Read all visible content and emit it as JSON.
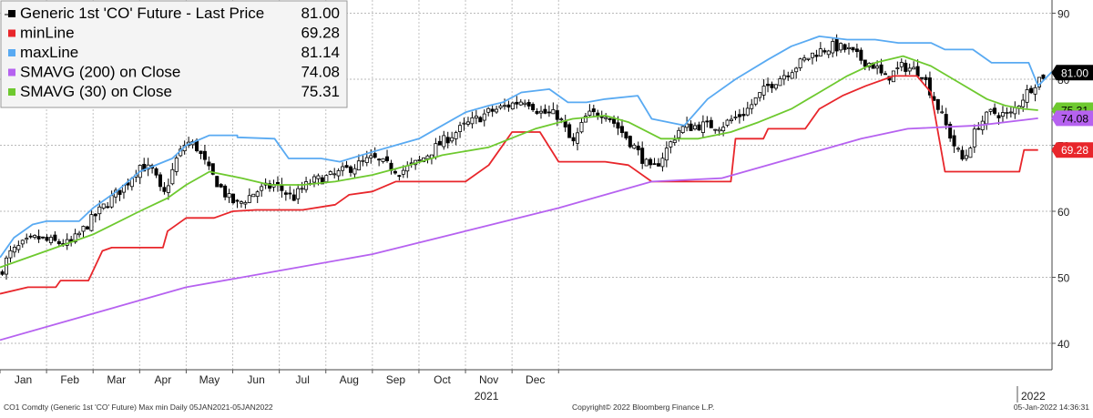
{
  "chart_data": {
    "type": "line",
    "subtype": "candlestick-with-overlays",
    "legend_placement": "top-left",
    "grid": true,
    "ylim": [
      36,
      92
    ],
    "y_ticks": [
      40,
      50,
      60,
      70,
      80,
      90
    ],
    "x_month_labels": [
      "Jan",
      "Feb",
      "Mar",
      "Apr",
      "May",
      "Jun",
      "Jul",
      "Aug",
      "Sep",
      "Oct",
      "Nov",
      "Dec"
    ],
    "year_labels": [
      "2021",
      "2022"
    ],
    "legend": [
      {
        "name": "Generic 1st 'CO' Future - Last Price",
        "value": "81.00",
        "color": "#000000"
      },
      {
        "name": "minLine",
        "value": "69.28",
        "color": "#e8262b"
      },
      {
        "name": "maxLine",
        "value": "81.14",
        "color": "#59aaf2"
      },
      {
        "name": "SMAVG (200)  on Close",
        "value": "74.08",
        "color": "#b662f0"
      },
      {
        "name": "SMAVG (30)  on Close",
        "value": "75.31",
        "color": "#6ec92f"
      }
    ],
    "right_labels": [
      {
        "value": "81.00",
        "y": 81.0,
        "bg": "#000000",
        "fg": "#ffffff"
      },
      {
        "value": "75.31",
        "y": 75.31,
        "bg": "#6ec92f",
        "fg": "#000000"
      },
      {
        "value": "74.08",
        "y": 74.08,
        "bg": "#b662f0",
        "fg": "#000000"
      },
      {
        "value": "69.28",
        "y": 69.28,
        "bg": "#e8262b",
        "fg": "#ffffff"
      }
    ],
    "series": [
      {
        "name": "maxLine",
        "color": "#59aaf2",
        "points": [
          [
            0,
            53
          ],
          [
            0.3,
            56
          ],
          [
            0.7,
            58
          ],
          [
            1,
            58.5
          ],
          [
            1.7,
            58.5
          ],
          [
            2,
            60.5
          ],
          [
            2.5,
            63
          ],
          [
            3,
            66
          ],
          [
            3.7,
            68
          ],
          [
            4,
            70
          ],
          [
            4.5,
            71.5
          ],
          [
            5.1,
            71.5
          ],
          [
            5.1,
            71.2
          ],
          [
            5.9,
            71
          ],
          [
            6.2,
            68
          ],
          [
            6.9,
            68
          ],
          [
            7.3,
            67.5
          ],
          [
            8,
            69
          ],
          [
            8.5,
            70
          ],
          [
            9,
            71
          ],
          [
            9.5,
            73
          ],
          [
            10,
            75
          ],
          [
            10.5,
            76
          ],
          [
            10.8,
            76.5
          ],
          [
            11.2,
            78
          ],
          [
            11.8,
            78.5
          ],
          [
            12.2,
            76.5
          ],
          [
            12.6,
            76.5
          ],
          [
            13,
            77
          ],
          [
            13.7,
            77.5
          ],
          [
            14,
            74
          ],
          [
            14.7,
            73
          ],
          [
            15.2,
            77
          ],
          [
            15.8,
            80
          ],
          [
            16.5,
            83
          ],
          [
            17,
            85
          ],
          [
            17.6,
            86.5
          ],
          [
            18.2,
            86
          ],
          [
            18.8,
            86
          ],
          [
            19.3,
            85.5
          ],
          [
            20,
            85.5
          ],
          [
            20.3,
            84.5
          ],
          [
            20.9,
            84.5
          ],
          [
            21.3,
            82.5
          ],
          [
            22.1,
            82.5
          ],
          [
            22.3,
            79
          ],
          [
            22.6,
            81.14
          ]
        ]
      },
      {
        "name": "minLine",
        "color": "#e8262b",
        "points": [
          [
            0,
            47.5
          ],
          [
            0.6,
            48.5
          ],
          [
            1.2,
            48.5
          ],
          [
            1.3,
            49.5
          ],
          [
            1.9,
            49.5
          ],
          [
            2.2,
            54
          ],
          [
            2.4,
            54.5
          ],
          [
            3.5,
            54.5
          ],
          [
            3.6,
            57
          ],
          [
            4,
            59
          ],
          [
            4.6,
            59
          ],
          [
            5,
            60
          ],
          [
            5.5,
            60.2
          ],
          [
            6.5,
            60.2
          ],
          [
            7.2,
            61
          ],
          [
            7.5,
            62.5
          ],
          [
            8,
            63
          ],
          [
            8.5,
            64.5
          ],
          [
            9.2,
            64.5
          ],
          [
            10,
            64.5
          ],
          [
            10.5,
            67
          ],
          [
            11,
            72
          ],
          [
            11.6,
            72
          ],
          [
            12,
            67.5
          ],
          [
            12.7,
            67.5
          ],
          [
            13,
            67.5
          ],
          [
            13.5,
            67
          ],
          [
            14,
            64.5
          ],
          [
            15.7,
            64.5
          ],
          [
            15.8,
            71
          ],
          [
            16.4,
            71
          ],
          [
            16.5,
            72.5
          ],
          [
            17.3,
            72.5
          ],
          [
            17.6,
            75.5
          ],
          [
            18.1,
            77.5
          ],
          [
            18.6,
            79
          ],
          [
            19.2,
            80.5
          ],
          [
            19.7,
            80.5
          ],
          [
            20,
            78
          ],
          [
            20.3,
            66
          ],
          [
            21.9,
            66
          ],
          [
            22,
            69.28
          ],
          [
            22.3,
            69.28
          ]
        ]
      },
      {
        "name": "SMAVG (200)  on Close",
        "color": "#b662f0",
        "points": [
          [
            0,
            40.5
          ],
          [
            2,
            44.5
          ],
          [
            4,
            48.5
          ],
          [
            6,
            51
          ],
          [
            8,
            53.5
          ],
          [
            10,
            57
          ],
          [
            12,
            60.5
          ],
          [
            14,
            64.5
          ],
          [
            15.5,
            65
          ],
          [
            17,
            68
          ],
          [
            18.5,
            71
          ],
          [
            19.5,
            72.5
          ],
          [
            21,
            73
          ],
          [
            22.3,
            74.08
          ]
        ]
      },
      {
        "name": "SMAVG (30)  on Close",
        "color": "#6ec92f",
        "points": [
          [
            0,
            51.5
          ],
          [
            1,
            54
          ],
          [
            2,
            56.5
          ],
          [
            3,
            60
          ],
          [
            3.6,
            62
          ],
          [
            4,
            64
          ],
          [
            4.5,
            66
          ],
          [
            5.2,
            65
          ],
          [
            5.8,
            64
          ],
          [
            6.5,
            64
          ],
          [
            7.2,
            64.5
          ],
          [
            8,
            65.5
          ],
          [
            8.8,
            67
          ],
          [
            9.5,
            68.5
          ],
          [
            10.5,
            69.7
          ],
          [
            11.5,
            72.5
          ],
          [
            12.3,
            74
          ],
          [
            13,
            74.5
          ],
          [
            13.5,
            73.5
          ],
          [
            14.2,
            71
          ],
          [
            15,
            71
          ],
          [
            15.7,
            72
          ],
          [
            16.3,
            73.5
          ],
          [
            17,
            75.5
          ],
          [
            17.6,
            78
          ],
          [
            18.2,
            80.5
          ],
          [
            18.8,
            82.5
          ],
          [
            19.4,
            83.5
          ],
          [
            20,
            82
          ],
          [
            20.6,
            79.5
          ],
          [
            21.2,
            77
          ],
          [
            21.6,
            76
          ],
          [
            22,
            75.5
          ],
          [
            22.3,
            75.31
          ]
        ]
      }
    ],
    "price_anchors": [
      [
        0,
        50.5
      ],
      [
        0.2,
        53.5
      ],
      [
        0.5,
        55
      ],
      [
        0.8,
        56
      ],
      [
        1,
        55.5
      ],
      [
        1.5,
        55
      ],
      [
        1.7,
        56.5
      ],
      [
        2,
        59
      ],
      [
        2.4,
        62
      ],
      [
        2.7,
        64
      ],
      [
        3,
        67
      ],
      [
        3.3,
        66
      ],
      [
        3.5,
        62
      ],
      [
        3.8,
        68
      ],
      [
        4,
        70.5
      ],
      [
        4.2,
        70
      ],
      [
        4.5,
        66
      ],
      [
        4.9,
        62
      ],
      [
        5.1,
        61
      ],
      [
        5.5,
        63
      ],
      [
        5.9,
        64
      ],
      [
        6.3,
        62
      ],
      [
        6.5,
        63.5
      ],
      [
        6.7,
        64.5
      ],
      [
        7.2,
        65.5
      ],
      [
        7.5,
        66.5
      ],
      [
        8,
        68
      ],
      [
        8.6,
        66
      ],
      [
        9,
        67.5
      ],
      [
        9.5,
        70.5
      ],
      [
        10,
        73
      ],
      [
        10.5,
        75
      ],
      [
        10.9,
        76
      ],
      [
        11.3,
        77
      ],
      [
        11.6,
        75
      ],
      [
        12,
        74.5
      ],
      [
        12.3,
        70
      ],
      [
        12.6,
        74.5
      ],
      [
        13,
        75
      ],
      [
        13.3,
        72.5
      ],
      [
        13.6,
        70
      ],
      [
        14,
        66
      ],
      [
        14.2,
        68
      ],
      [
        14.6,
        72.5
      ],
      [
        15,
        73
      ],
      [
        15.5,
        73
      ],
      [
        16,
        75
      ],
      [
        16.5,
        79
      ],
      [
        17,
        81.5
      ],
      [
        17.5,
        84
      ],
      [
        17.9,
        85
      ],
      [
        18.2,
        84.5
      ],
      [
        18.5,
        83
      ],
      [
        18.8,
        82
      ],
      [
        19,
        80
      ],
      [
        19.4,
        82
      ],
      [
        19.8,
        81
      ],
      [
        20.2,
        75
      ],
      [
        20.5,
        70
      ],
      [
        20.7,
        67.5
      ],
      [
        21,
        73
      ],
      [
        21.3,
        75
      ],
      [
        21.7,
        74.5
      ],
      [
        22,
        77.5
      ],
      [
        22.3,
        80
      ],
      [
        22.5,
        81
      ]
    ]
  },
  "footer": {
    "left": "CO1 Comdty (Generic 1st 'CO' Future) Max min  Daily 05JAN2021-05JAN2022",
    "center": "Copyright© 2022 Bloomberg Finance L.P.",
    "right": "05-Jan-2022  14:36:31"
  }
}
